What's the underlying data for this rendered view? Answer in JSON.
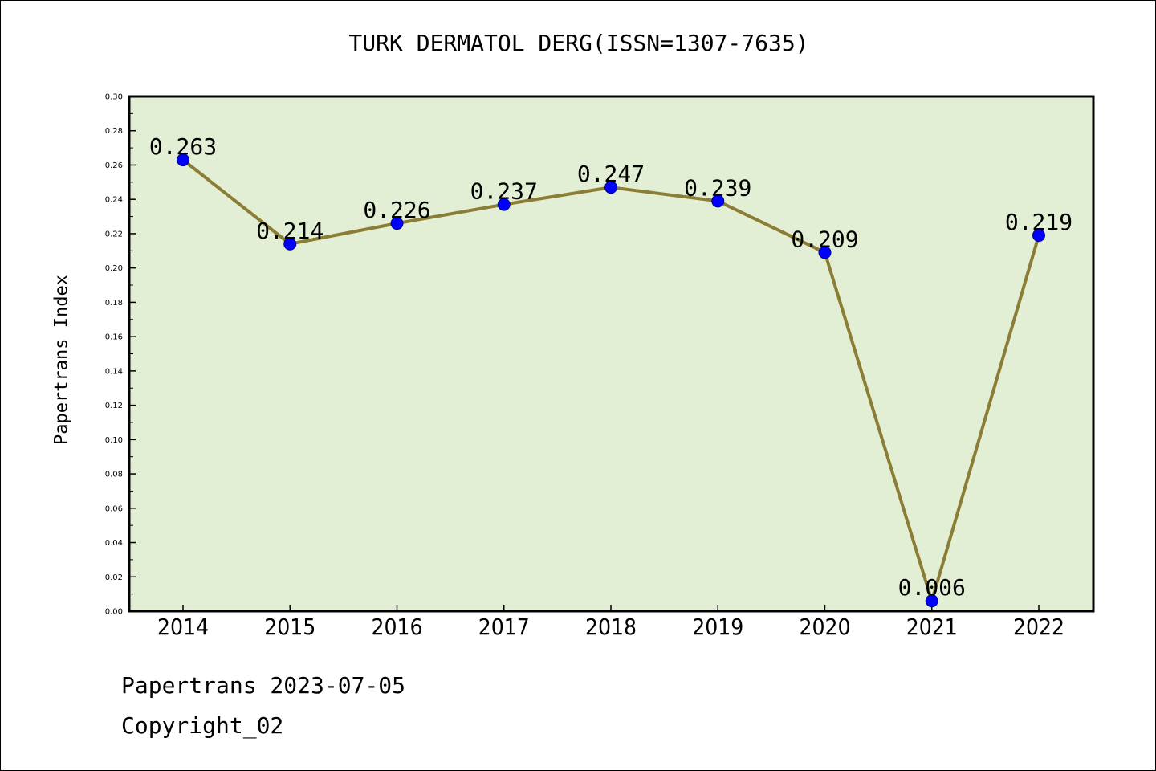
{
  "chart_data": {
    "type": "line",
    "title": "TURK DERMATOL DERG(ISSN=1307-7635)",
    "xlabel": "",
    "ylabel": "Papertrans Index",
    "categories": [
      "2014",
      "2015",
      "2016",
      "2017",
      "2018",
      "2019",
      "2020",
      "2021",
      "2022"
    ],
    "series": [
      {
        "values": [
          0.263,
          0.214,
          0.226,
          0.237,
          0.247,
          0.239,
          0.209,
          0.006,
          0.219
        ]
      }
    ],
    "data_labels": [
      "0.263",
      "0.214",
      "0.226",
      "0.237",
      "0.247",
      "0.239",
      "0.209",
      "0.006",
      "0.219"
    ],
    "ylim": [
      0,
      0.3
    ],
    "yticks": [
      "0.00",
      "0.02",
      "0.04",
      "0.06",
      "0.08",
      "0.10",
      "0.12",
      "0.14",
      "0.16",
      "0.18",
      "0.20",
      "0.22",
      "0.24",
      "0.26",
      "0.28",
      "0.30"
    ],
    "grid": false,
    "legend": "none",
    "colors": {
      "plot_background": "#e2efd4",
      "line": "#8b7d35",
      "marker": "#0000ff"
    }
  },
  "footer": {
    "date_line": "Papertrans 2023-07-05",
    "copyright_line": "Copyright_02"
  }
}
